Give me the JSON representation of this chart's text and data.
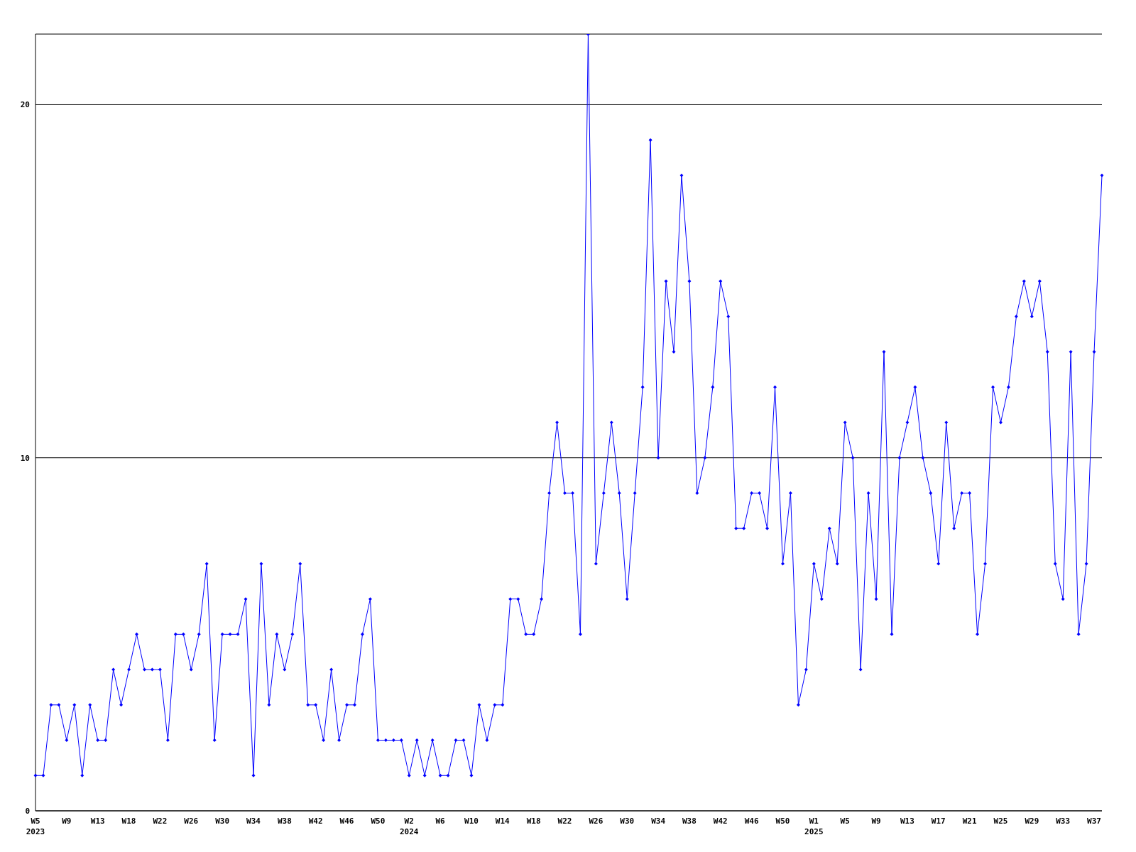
{
  "chart_data": {
    "type": "line",
    "categories": [
      "W5\n2023",
      null,
      null,
      null,
      "W9",
      null,
      null,
      null,
      "W13",
      null,
      null,
      null,
      "W18",
      null,
      null,
      null,
      "W22",
      null,
      null,
      null,
      "W26",
      null,
      null,
      null,
      "W30",
      null,
      null,
      null,
      "W34",
      null,
      null,
      null,
      "W38",
      null,
      null,
      null,
      "W42",
      null,
      null,
      null,
      "W46",
      null,
      null,
      null,
      "W50",
      null,
      null,
      null,
      "W2\n2024",
      null,
      null,
      null,
      "W6",
      null,
      null,
      null,
      "W10",
      null,
      null,
      null,
      "W14",
      null,
      null,
      null,
      "W18",
      null,
      null,
      null,
      "W22",
      null,
      null,
      null,
      "W26",
      null,
      null,
      null,
      "W30",
      null,
      null,
      null,
      "W34",
      null,
      null,
      null,
      "W38",
      null,
      null,
      null,
      "W42",
      null,
      null,
      null,
      "W46",
      null,
      null,
      null,
      "W50",
      null,
      null,
      null,
      "W1\n2025",
      null,
      null,
      null,
      "W5",
      null,
      null,
      null,
      "W9",
      null,
      null,
      null,
      "W13",
      null,
      null,
      null,
      "W17",
      null,
      null,
      null,
      "W21",
      null,
      null,
      null,
      "W25",
      null,
      null,
      null,
      "W29",
      null,
      null,
      null,
      "W33",
      null,
      null,
      null,
      "W37",
      null
    ],
    "series": [
      {
        "color": "#0000ff",
        "values": [
          1,
          1,
          3,
          3,
          2,
          3,
          1,
          3,
          2,
          2,
          4,
          3,
          4,
          5,
          4,
          4,
          4,
          2,
          5,
          5,
          4,
          5,
          7,
          2,
          5,
          5,
          5,
          6,
          1,
          7,
          3,
          5,
          4,
          5,
          7,
          3,
          3,
          2,
          4,
          2,
          3,
          3,
          5,
          6,
          2,
          2,
          2,
          2,
          1,
          2,
          1,
          2,
          1,
          1,
          2,
          2,
          1,
          3,
          2,
          3,
          3,
          6,
          6,
          5,
          5,
          6,
          9,
          11,
          9,
          9,
          5,
          22,
          7,
          9,
          11,
          9,
          6,
          9,
          12,
          19,
          10,
          15,
          13,
          18,
          15,
          9,
          10,
          12,
          15,
          14,
          8,
          8,
          9,
          9,
          8,
          12,
          7,
          9,
          3,
          4,
          7,
          6,
          8,
          7,
          11,
          10,
          4,
          9,
          6,
          13,
          5,
          10,
          11,
          12,
          10,
          9,
          7,
          11,
          8,
          9,
          9,
          5,
          7,
          12,
          11,
          12,
          14,
          15,
          14,
          15,
          13,
          7,
          6,
          13,
          5,
          7,
          13,
          18
        ]
      }
    ],
    "ylim": [
      0,
      22
    ],
    "yticks": [
      0,
      10,
      20
    ],
    "grid": "y",
    "marker": "diamond",
    "line_style": "solid"
  }
}
